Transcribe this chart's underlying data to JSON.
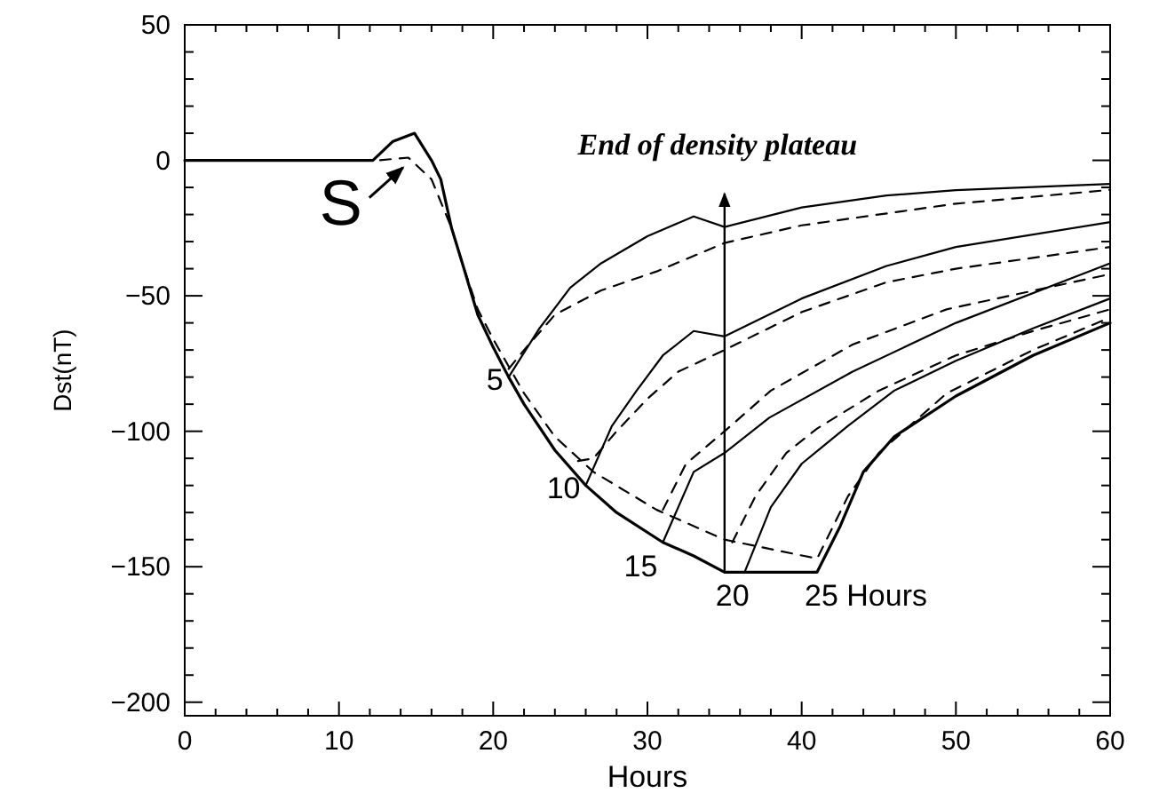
{
  "chart_data": {
    "type": "line",
    "xlabel": "Hours",
    "ylabel": "Dst(nT)",
    "xlim": [
      0,
      60
    ],
    "ylim": [
      -205,
      50
    ],
    "xticks": [
      0,
      {
        "value": 2,
        "label": null
      },
      {
        "value": 4,
        "label": null
      },
      {
        "value": 6,
        "label": null
      },
      {
        "value": 8,
        "label": null
      },
      10,
      {
        "value": 12,
        "label": null
      },
      {
        "value": 14,
        "label": null
      },
      {
        "value": 16,
        "label": null
      },
      {
        "value": 18,
        "label": null
      },
      20,
      {
        "value": 22,
        "label": null
      },
      {
        "value": 24,
        "label": null
      },
      {
        "value": 26,
        "label": null
      },
      {
        "value": 28,
        "label": null
      },
      30,
      {
        "value": 32,
        "label": null
      },
      {
        "value": 34,
        "label": null
      },
      {
        "value": 36,
        "label": null
      },
      {
        "value": 38,
        "label": null
      },
      40,
      {
        "value": 42,
        "label": null
      },
      {
        "value": 44,
        "label": null
      },
      {
        "value": 46,
        "label": null
      },
      {
        "value": 48,
        "label": null
      },
      50,
      {
        "value": 52,
        "label": null
      },
      {
        "value": 54,
        "label": null
      },
      {
        "value": 56,
        "label": null
      },
      {
        "value": 58,
        "label": null
      },
      60
    ],
    "yticks": [
      {
        "value": -200,
        "label": "−200"
      },
      {
        "value": -190,
        "label": null
      },
      {
        "value": -180,
        "label": null
      },
      {
        "value": -170,
        "label": null
      },
      {
        "value": -160,
        "label": null
      },
      {
        "value": -150,
        "label": "−150"
      },
      {
        "value": -140,
        "label": null
      },
      {
        "value": -130,
        "label": null
      },
      {
        "value": -120,
        "label": null
      },
      {
        "value": -110,
        "label": null
      },
      {
        "value": -100,
        "label": "−100"
      },
      {
        "value": -90,
        "label": null
      },
      {
        "value": -80,
        "label": null
      },
      {
        "value": -70,
        "label": null
      },
      {
        "value": -60,
        "label": null
      },
      {
        "value": -50,
        "label": "−50"
      },
      {
        "value": -40,
        "label": null
      },
      {
        "value": -30,
        "label": null
      },
      {
        "value": -20,
        "label": null
      },
      {
        "value": -10,
        "label": null
      },
      0,
      {
        "value": 10,
        "label": null
      },
      {
        "value": 20,
        "label": null
      },
      {
        "value": 30,
        "label": null
      },
      {
        "value": 40,
        "label": null
      },
      50
    ],
    "ref_lines": [
      {
        "axis": "x",
        "value": 35,
        "label": "End of density plateau"
      }
    ],
    "series": [
      {
        "color": "#000000",
        "line_style": "solid",
        "x": [
          0,
          12.2,
          13.5,
          14.9,
          16,
          16.6,
          17.3,
          18,
          19,
          20,
          21,
          22,
          24,
          26,
          28,
          31,
          33,
          35,
          41,
          42.5,
          44,
          46,
          50,
          55,
          60
        ],
        "values": [
          0,
          0,
          7,
          10,
          0,
          -7,
          -25,
          -38,
          -57,
          -69,
          -80,
          -90,
          -107,
          -120,
          -130,
          -141,
          -146,
          -152,
          -152,
          -135,
          -115,
          -102,
          -87,
          -72,
          -60
        ]
      },
      {
        "color": "#000000",
        "line_style": "dashed",
        "x": [
          0,
          12.5,
          14.5,
          16,
          17.3,
          18,
          19,
          20,
          21,
          22,
          24,
          26.5,
          30.6,
          35,
          41,
          43,
          45,
          49.4,
          55,
          60
        ],
        "values": [
          0,
          0,
          1,
          -7,
          -25,
          -38,
          -55,
          -66,
          -76,
          -86,
          -102,
          -115,
          -129,
          -140,
          -147,
          -124,
          -108,
          -86,
          -70,
          -58
        ]
      },
      {
        "color": "#000000",
        "line_style": "solid",
        "x": [
          21,
          23,
          25,
          27,
          30,
          33,
          35,
          40,
          45.5,
          50,
          60
        ],
        "values": [
          -80,
          -62,
          -47,
          -38,
          -28,
          -20.7,
          -24.6,
          -17.4,
          -13,
          -11,
          -8.7
        ]
      },
      {
        "color": "#000000",
        "line_style": "dashed",
        "x": [
          21,
          22,
          24,
          27,
          30.6,
          35,
          40,
          50,
          60
        ],
        "values": [
          -77,
          -70,
          -57,
          -48,
          -41,
          -30.5,
          -24,
          -16,
          -10.9
        ]
      },
      {
        "color": "#000000",
        "line_style": "solid",
        "x": [
          26,
          27.7,
          29.3,
          31,
          33,
          35,
          40,
          45.5,
          50,
          60
        ],
        "values": [
          -120,
          -98,
          -85,
          -72,
          -63,
          -65,
          -51,
          -39,
          -32,
          -22.8
        ]
      },
      {
        "color": "#000000",
        "line_style": "dashed",
        "x": [
          25.5,
          26.5,
          28,
          30,
          32,
          35,
          40,
          45.5,
          50,
          60
        ],
        "values": [
          -111,
          -110,
          -100,
          -88,
          -78,
          -70,
          -56,
          -45,
          -40,
          -32
        ]
      },
      {
        "color": "#000000",
        "line_style": "solid",
        "x": [
          31,
          33,
          35,
          37.9,
          43.3,
          50,
          60
        ],
        "values": [
          -141,
          -115,
          -108,
          -95,
          -78,
          -60,
          -38
        ]
      },
      {
        "color": "#000000",
        "line_style": "dashed",
        "x": [
          31,
          32.5,
          35,
          38,
          43.3,
          49.4,
          60
        ],
        "values": [
          -129,
          -112,
          -100,
          -85,
          -68,
          -55,
          -42
        ]
      },
      {
        "color": "#000000",
        "line_style": "solid",
        "x": [
          35,
          36.3,
          38,
          40,
          43,
          46,
          50,
          55,
          60
        ],
        "values": [
          -152,
          -152,
          -128,
          -112,
          -98,
          -85,
          -74,
          -62,
          -51
        ]
      },
      {
        "color": "#000000",
        "line_style": "dashed",
        "x": [
          35.5,
          37,
          39,
          41,
          45,
          50,
          55,
          60
        ],
        "values": [
          -141,
          -124,
          -108,
          -99,
          -85,
          -72,
          -63,
          -55
        ]
      }
    ],
    "annotations": [
      {
        "text": "S",
        "x": 14.5,
        "y": 0
      },
      {
        "text": "5",
        "x": 21,
        "y": -80
      },
      {
        "text": "10",
        "x": 26,
        "y": -120
      },
      {
        "text": "15",
        "x": 31,
        "y": -141
      },
      {
        "text": "20",
        "x": 35,
        "y": -152
      },
      {
        "text": "25 Hours",
        "x": 41,
        "y": -152
      }
    ]
  }
}
